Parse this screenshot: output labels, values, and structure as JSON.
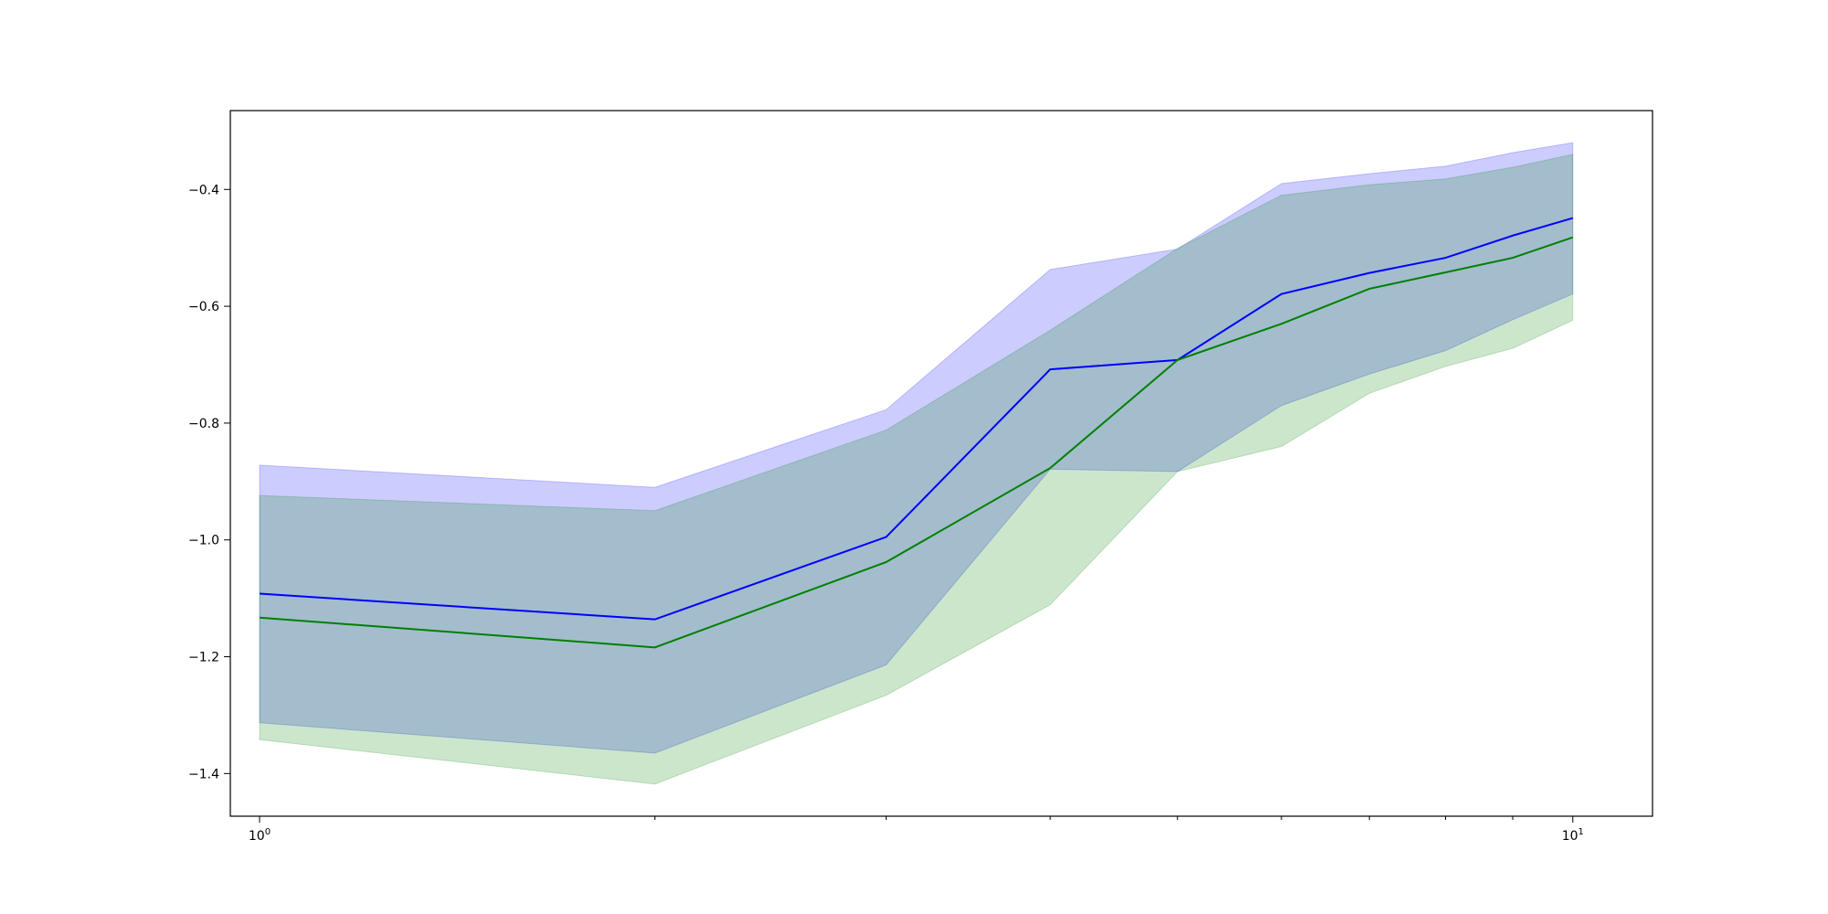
{
  "chart_data": {
    "type": "area",
    "title": "",
    "xlabel": "",
    "ylabel": "",
    "x_scale": "log",
    "xlim": [
      0.95,
      11.5
    ],
    "ylim": [
      -1.473,
      -0.265
    ],
    "grid": false,
    "x": [
      1,
      2,
      3,
      4,
      5,
      6,
      7,
      8,
      9,
      10
    ],
    "x_ticks": [
      {
        "value": 1,
        "base": "10",
        "exp": "0"
      },
      {
        "value": 10,
        "base": "10",
        "exp": "1"
      }
    ],
    "x_minor_ticks": [
      2,
      3,
      4,
      5,
      6,
      7,
      8,
      9,
      20
    ],
    "y_ticks": [
      {
        "value": -1.4,
        "label": "−1.4"
      },
      {
        "value": -1.2,
        "label": "−1.2"
      },
      {
        "value": -1.0,
        "label": "−1.0"
      },
      {
        "value": -0.8,
        "label": "−0.8"
      },
      {
        "value": -0.6,
        "label": "−0.6"
      },
      {
        "value": -0.4,
        "label": "−0.4"
      }
    ],
    "series": [
      {
        "color": "#0000ff",
        "band_color": "#0000ff",
        "band_opacity": 0.2,
        "values": [
          -1.092,
          -1.136,
          -0.995,
          -0.708,
          -0.692,
          -0.579,
          -0.543,
          -0.517,
          -0.479,
          -0.449
        ],
        "lower": [
          -1.313,
          -1.365,
          -1.214,
          -0.879,
          -0.883,
          -0.77,
          -0.716,
          -0.676,
          -0.623,
          -0.579
        ],
        "upper": [
          -0.872,
          -0.91,
          -0.777,
          -0.537,
          -0.502,
          -0.39,
          -0.373,
          -0.36,
          -0.337,
          -0.32
        ]
      },
      {
        "color": "#008000",
        "band_color": "#008000",
        "band_opacity": 0.2,
        "values": [
          -1.133,
          -1.184,
          -1.038,
          -0.877,
          -0.692,
          -0.63,
          -0.57,
          -0.542,
          -0.517,
          -0.482
        ],
        "lower": [
          -1.342,
          -1.418,
          -1.266,
          -1.111,
          -0.883,
          -0.84,
          -0.749,
          -0.703,
          -0.672,
          -0.624
        ],
        "upper": [
          -0.924,
          -0.95,
          -0.812,
          -0.641,
          -0.501,
          -0.41,
          -0.392,
          -0.382,
          -0.362,
          -0.34
        ]
      }
    ]
  }
}
